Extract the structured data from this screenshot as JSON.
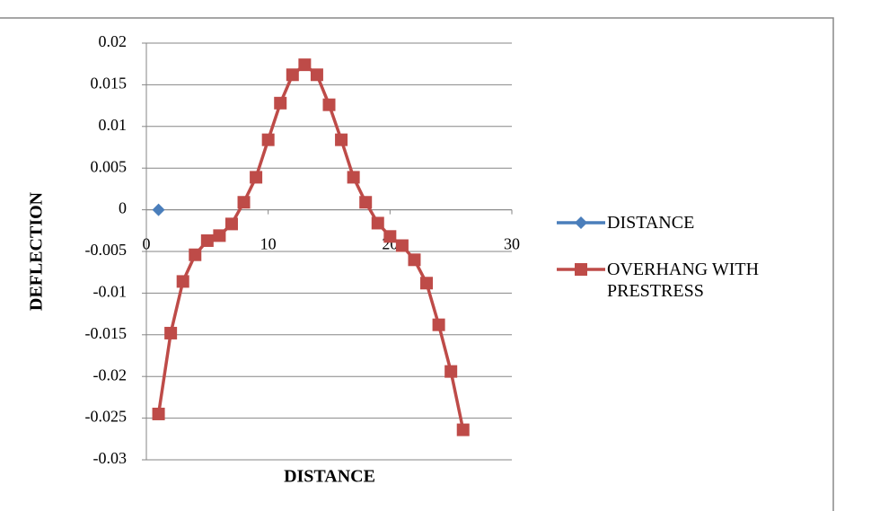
{
  "chart_data": {
    "type": "scatter",
    "x_label": "DISTANCE",
    "y_label": "DEFLECTION",
    "xlim": [
      0,
      30
    ],
    "xticks": [
      0,
      10,
      20,
      30
    ],
    "ylim": [
      -0.03,
      0.02
    ],
    "yticks": [
      0.02,
      0.015,
      0.01,
      0.005,
      0,
      -0.005,
      -0.01,
      -0.015,
      -0.02,
      -0.025,
      -0.03
    ],
    "grid": true,
    "legend": "right",
    "series": [
      {
        "name": "DISTANCE",
        "color": "#4a7ebb",
        "marker": "diamond",
        "x": [
          1
        ],
        "values": [
          0
        ]
      },
      {
        "name": "OVERHANG WITH PRESTRESS",
        "color": "#be4b48",
        "marker": "square",
        "x": [
          1,
          2,
          3,
          4,
          5,
          6,
          7,
          8,
          9,
          10,
          11,
          12,
          13,
          14,
          15,
          16,
          17,
          18,
          19,
          20,
          21,
          22,
          23,
          24,
          25,
          26
        ],
        "values": [
          -0.0245,
          -0.0148,
          -0.0086,
          -0.0054,
          -0.0037,
          -0.0031,
          -0.0017,
          0.0009,
          0.0039,
          0.0084,
          0.0128,
          0.0162,
          0.0174,
          0.0162,
          0.0126,
          0.0084,
          0.0039,
          0.0009,
          -0.0016,
          -0.0032,
          -0.0043,
          -0.006,
          -0.0088,
          -0.0138,
          -0.0194,
          -0.0264
        ]
      }
    ]
  }
}
